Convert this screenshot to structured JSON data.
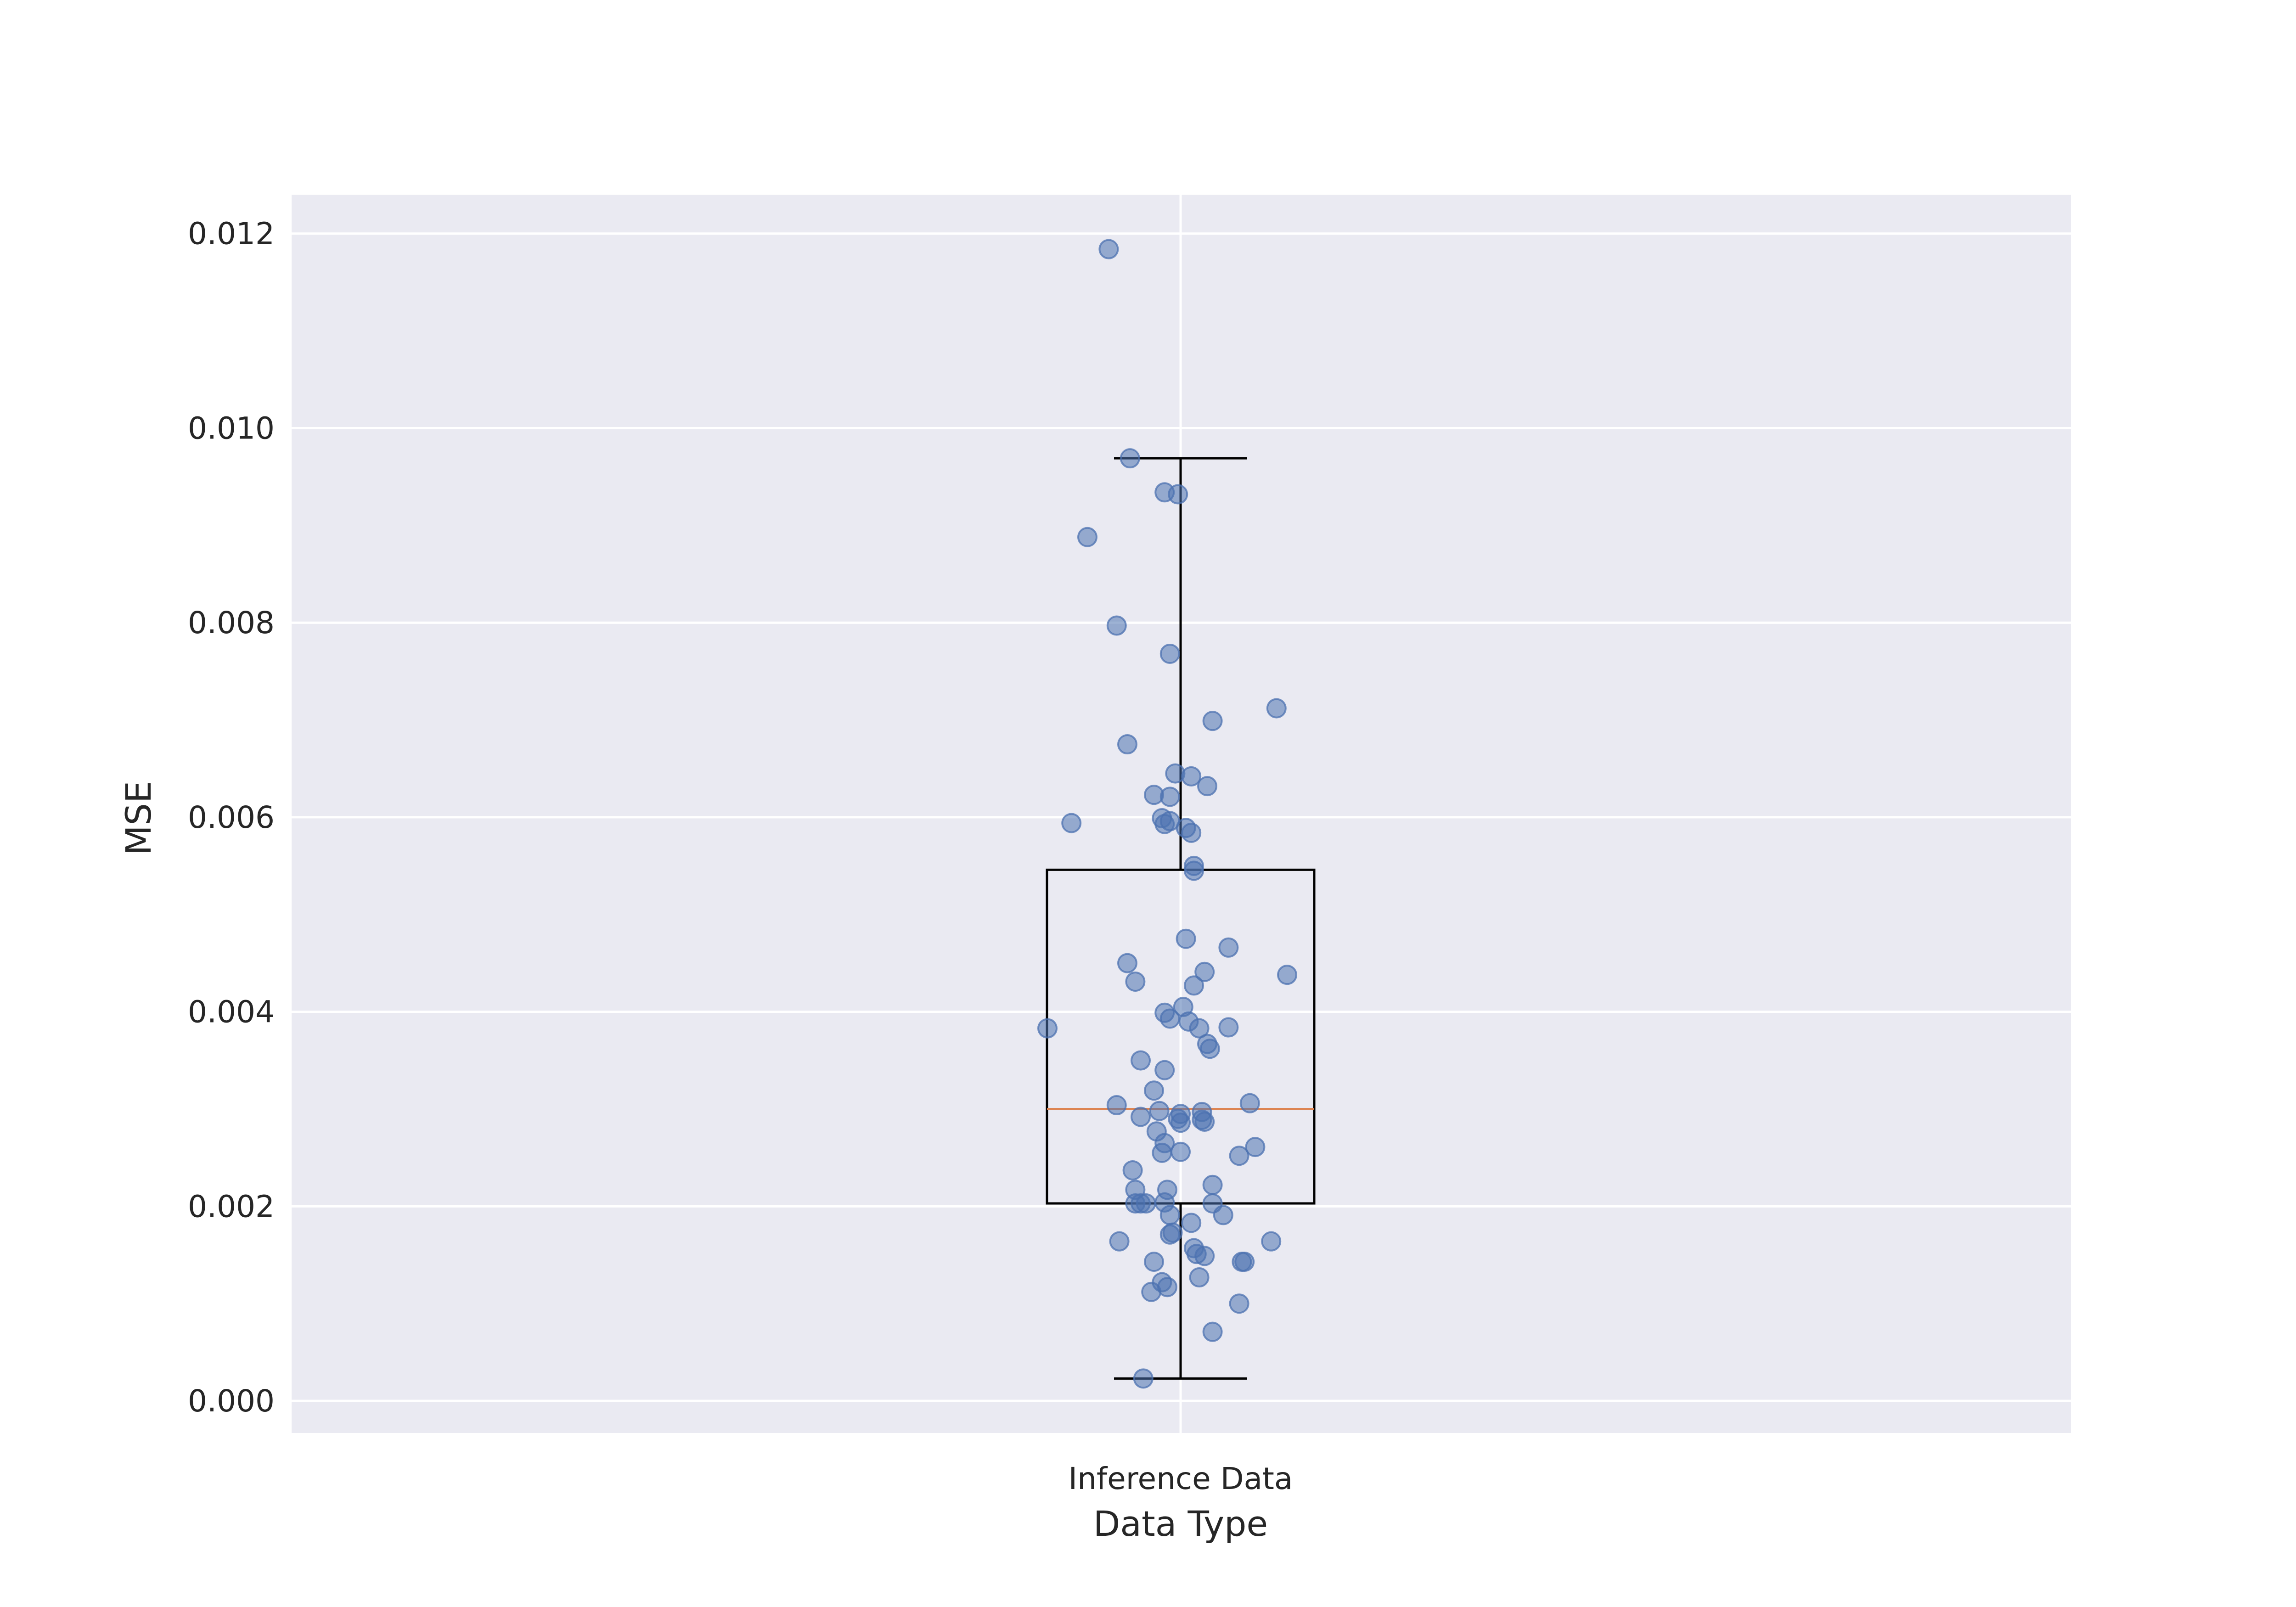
{
  "chart_data": {
    "type": "scatter",
    "subtype": "box-plot-with-jittered-points",
    "title": "",
    "xlabel": "Data Type",
    "ylabel": "MSE",
    "categories": [
      "Inference Data"
    ],
    "ylim": [
      -0.00033,
      0.0124
    ],
    "yticks": [
      0.0,
      0.002,
      0.004,
      0.006,
      0.008,
      0.01,
      0.012
    ],
    "ytick_labels": [
      "0.000",
      "0.002",
      "0.004",
      "0.006",
      "0.008",
      "0.010",
      "0.012"
    ],
    "grid": true,
    "legend": "none",
    "colors": {
      "background": "#eaeaf2",
      "grid": "#ffffff",
      "points": "#4c72b0",
      "median": "#dd8452",
      "box": "#000000"
    },
    "box": {
      "whisker_low": 0.00023,
      "q1": 0.00203,
      "median": 0.003,
      "q3": 0.00546,
      "whisker_high": 0.00969
    },
    "points": [
      {
        "jitter": -0.27,
        "y": 0.01184
      },
      {
        "jitter": -0.19,
        "y": 0.00969
      },
      {
        "jitter": -0.06,
        "y": 0.00934
      },
      {
        "jitter": -0.01,
        "y": 0.00932
      },
      {
        "jitter": -0.35,
        "y": 0.00888
      },
      {
        "jitter": -0.24,
        "y": 0.00797
      },
      {
        "jitter": -0.04,
        "y": 0.00768
      },
      {
        "jitter": 0.36,
        "y": 0.00712
      },
      {
        "jitter": 0.12,
        "y": 0.00699
      },
      {
        "jitter": -0.2,
        "y": 0.00675
      },
      {
        "jitter": -0.02,
        "y": 0.00645
      },
      {
        "jitter": 0.04,
        "y": 0.00642
      },
      {
        "jitter": 0.1,
        "y": 0.00632
      },
      {
        "jitter": -0.1,
        "y": 0.00623
      },
      {
        "jitter": -0.04,
        "y": 0.00621
      },
      {
        "jitter": -0.07,
        "y": 0.00599
      },
      {
        "jitter": -0.06,
        "y": 0.00593
      },
      {
        "jitter": -0.04,
        "y": 0.00596
      },
      {
        "jitter": -0.41,
        "y": 0.00594
      },
      {
        "jitter": 0.02,
        "y": 0.00589
      },
      {
        "jitter": 0.04,
        "y": 0.00584
      },
      {
        "jitter": 0.05,
        "y": 0.0055
      },
      {
        "jitter": 0.05,
        "y": 0.00545
      },
      {
        "jitter": 0.02,
        "y": 0.00475
      },
      {
        "jitter": 0.18,
        "y": 0.00466
      },
      {
        "jitter": -0.2,
        "y": 0.0045
      },
      {
        "jitter": 0.09,
        "y": 0.00441
      },
      {
        "jitter": 0.4,
        "y": 0.00438
      },
      {
        "jitter": -0.17,
        "y": 0.00431
      },
      {
        "jitter": 0.05,
        "y": 0.00427
      },
      {
        "jitter": 0.01,
        "y": 0.00405
      },
      {
        "jitter": -0.06,
        "y": 0.00399
      },
      {
        "jitter": -0.04,
        "y": 0.00393
      },
      {
        "jitter": 0.03,
        "y": 0.0039
      },
      {
        "jitter": 0.07,
        "y": 0.00383
      },
      {
        "jitter": 0.18,
        "y": 0.00384
      },
      {
        "jitter": -0.5,
        "y": 0.00383
      },
      {
        "jitter": 0.1,
        "y": 0.00367
      },
      {
        "jitter": 0.11,
        "y": 0.00362
      },
      {
        "jitter": -0.15,
        "y": 0.0035
      },
      {
        "jitter": -0.06,
        "y": 0.0034
      },
      {
        "jitter": -0.1,
        "y": 0.00319
      },
      {
        "jitter": -0.24,
        "y": 0.00304
      },
      {
        "jitter": 0.26,
        "y": 0.00306
      },
      {
        "jitter": -0.08,
        "y": 0.00298
      },
      {
        "jitter": 0.0,
        "y": 0.00295
      },
      {
        "jitter": 0.08,
        "y": 0.00297
      },
      {
        "jitter": -0.15,
        "y": 0.00292
      },
      {
        "jitter": -0.01,
        "y": 0.0029
      },
      {
        "jitter": 0.0,
        "y": 0.00286
      },
      {
        "jitter": 0.08,
        "y": 0.00289
      },
      {
        "jitter": 0.09,
        "y": 0.00287
      },
      {
        "jitter": -0.09,
        "y": 0.00277
      },
      {
        "jitter": -0.06,
        "y": 0.00265
      },
      {
        "jitter": 0.0,
        "y": 0.00256
      },
      {
        "jitter": -0.07,
        "y": 0.00255
      },
      {
        "jitter": 0.22,
        "y": 0.00252
      },
      {
        "jitter": 0.28,
        "y": 0.00261
      },
      {
        "jitter": -0.18,
        "y": 0.00237
      },
      {
        "jitter": -0.17,
        "y": 0.00217
      },
      {
        "jitter": -0.05,
        "y": 0.00217
      },
      {
        "jitter": 0.12,
        "y": 0.00222
      },
      {
        "jitter": -0.17,
        "y": 0.00203
      },
      {
        "jitter": -0.15,
        "y": 0.00203
      },
      {
        "jitter": -0.13,
        "y": 0.00203
      },
      {
        "jitter": -0.06,
        "y": 0.00204
      },
      {
        "jitter": 0.12,
        "y": 0.00203
      },
      {
        "jitter": -0.04,
        "y": 0.00191
      },
      {
        "jitter": 0.16,
        "y": 0.00191
      },
      {
        "jitter": 0.04,
        "y": 0.00183
      },
      {
        "jitter": -0.03,
        "y": 0.00173
      },
      {
        "jitter": -0.04,
        "y": 0.00171
      },
      {
        "jitter": -0.23,
        "y": 0.00164
      },
      {
        "jitter": 0.34,
        "y": 0.00164
      },
      {
        "jitter": 0.05,
        "y": 0.00157
      },
      {
        "jitter": 0.06,
        "y": 0.00151
      },
      {
        "jitter": 0.09,
        "y": 0.00149
      },
      {
        "jitter": -0.1,
        "y": 0.00143
      },
      {
        "jitter": 0.23,
        "y": 0.00143
      },
      {
        "jitter": 0.24,
        "y": 0.00143
      },
      {
        "jitter": 0.07,
        "y": 0.00127
      },
      {
        "jitter": -0.07,
        "y": 0.00122
      },
      {
        "jitter": -0.05,
        "y": 0.00117
      },
      {
        "jitter": -0.11,
        "y": 0.00112
      },
      {
        "jitter": 0.22,
        "y": 0.001
      },
      {
        "jitter": 0.12,
        "y": 0.00071
      },
      {
        "jitter": -0.14,
        "y": 0.00023
      }
    ]
  }
}
